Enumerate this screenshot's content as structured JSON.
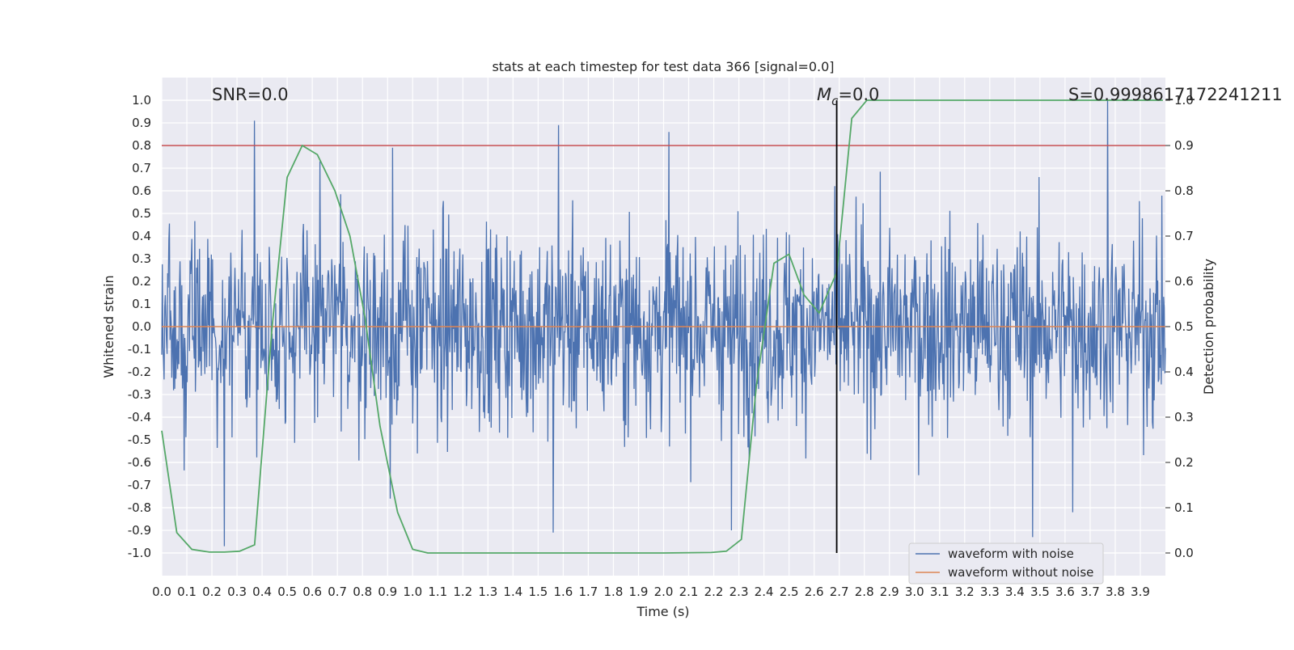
{
  "chart_data": {
    "type": "line",
    "title": "stats at each timestep for test data 366 [signal=0.0]",
    "xlabel": "Time (s)",
    "ylabel": "Whitened strain",
    "y2label": "Detection probability",
    "xlim": [
      0.0,
      4.0
    ],
    "ylim": [
      -1.1,
      1.1
    ],
    "y2lim": [
      -0.05,
      1.05
    ],
    "x_ticks": [
      "0.0",
      "0.1",
      "0.2",
      "0.3",
      "0.4",
      "0.5",
      "0.6",
      "0.7",
      "0.8",
      "0.9",
      "1.0",
      "1.1",
      "1.2",
      "1.3",
      "1.4",
      "1.5",
      "1.6",
      "1.7",
      "1.8",
      "1.9",
      "2.0",
      "2.1",
      "2.2",
      "2.3",
      "2.4",
      "2.5",
      "2.6",
      "2.7",
      "2.8",
      "2.9",
      "3.0",
      "3.1",
      "3.2",
      "3.3",
      "3.4",
      "3.5",
      "3.6",
      "3.7",
      "3.8",
      "3.9"
    ],
    "y_ticks": [
      "1.0",
      "0.9",
      "0.8",
      "0.7",
      "0.6",
      "0.5",
      "0.4",
      "0.3",
      "0.2",
      "0.1",
      "0.0",
      "-0.1",
      "-0.2",
      "-0.3",
      "-0.4",
      "-0.5",
      "-0.6",
      "-0.7",
      "-0.8",
      "-0.9",
      "-1.0"
    ],
    "y2_ticks": [
      "1.0",
      "0.9",
      "0.8",
      "0.7",
      "0.6",
      "0.5",
      "0.4",
      "0.3",
      "0.2",
      "0.1",
      "0.0"
    ],
    "grid": true,
    "legend_position": "lower-right",
    "annotations": {
      "snr": "SNR=0.0",
      "mc_symbol": "M",
      "mc_subscript": "c",
      "mc_value": "=0.0",
      "score": "S=0.9998617172241211"
    },
    "series": [
      {
        "name": "waveform with noise",
        "axis": "left",
        "color": "#4c72b0",
        "style": "noise",
        "typical_amplitude": 0.35,
        "peak_samples": [
          {
            "x": 0.37,
            "y": 0.91
          },
          {
            "x": 1.58,
            "y": 0.89
          },
          {
            "x": 2.02,
            "y": 0.86
          },
          {
            "x": 3.77,
            "y": 1.0
          },
          {
            "x": 0.63,
            "y": 0.73
          },
          {
            "x": 0.92,
            "y": 0.79
          },
          {
            "x": 0.25,
            "y": -0.97
          },
          {
            "x": 3.47,
            "y": -0.93
          },
          {
            "x": 1.56,
            "y": -0.91
          },
          {
            "x": 2.27,
            "y": -0.9
          },
          {
            "x": 0.91,
            "y": -0.76
          },
          {
            "x": 3.63,
            "y": -0.82
          }
        ]
      },
      {
        "name": "waveform without noise",
        "axis": "left",
        "color": "#dd8452",
        "x": [
          0.0,
          4.0
        ],
        "y": [
          0.0,
          0.0
        ]
      },
      {
        "axis": "right",
        "color": "#55a868",
        "x": [
          0.0,
          0.06,
          0.12,
          0.19,
          0.25,
          0.31,
          0.37,
          0.44,
          0.5,
          0.56,
          0.62,
          0.69,
          0.75,
          0.81,
          0.87,
          0.94,
          1.0,
          1.06,
          1.5,
          2.0,
          2.19,
          2.25,
          2.31,
          2.37,
          2.44,
          2.5,
          2.56,
          2.62,
          2.69,
          2.75,
          2.81,
          2.87,
          3.0,
          3.5,
          3.99
        ],
        "y": [
          0.27,
          0.045,
          0.008,
          0.002,
          0.002,
          0.004,
          0.018,
          0.5,
          0.83,
          0.9,
          0.88,
          0.8,
          0.7,
          0.52,
          0.28,
          0.09,
          0.008,
          0.0,
          0.0,
          0.0,
          0.001,
          0.004,
          0.03,
          0.37,
          0.64,
          0.66,
          0.57,
          0.53,
          0.62,
          0.96,
          1.0,
          1.0,
          1.0,
          1.0,
          1.0
        ]
      }
    ],
    "threshold_line": {
      "axis": "right",
      "value": 0.9,
      "color": "#c44e52"
    },
    "vertical_marker": {
      "x": 2.69,
      "y_top": 1.0,
      "y_bottom": -1.0,
      "color": "#000000"
    }
  }
}
